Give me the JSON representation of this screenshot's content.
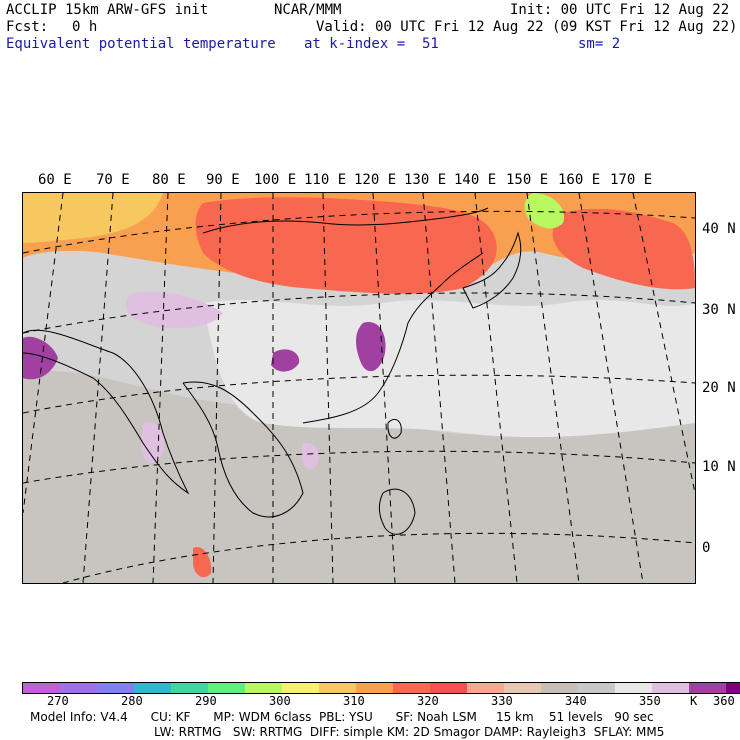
{
  "header": {
    "model": "ACCLIP 15km ARW-GFS init",
    "fcst_label": "Fcst:",
    "fcst_value": "0 h",
    "center": "NCAR/MMM",
    "init": "Init: 00 UTC Fri 12 Aug 22",
    "valid": "Valid: 00 UTC Fri 12 Aug 22 (09 KST Fri 12 Aug 22)",
    "field": "Equivalent potential temperature",
    "level": "at k-index =  51",
    "smooth": "sm= 2"
  },
  "map": {
    "lon_labels": [
      "60 E",
      "70 E",
      "80 E",
      "90 E",
      "100 E",
      "110 E",
      "120 E",
      "130 E",
      "140 E",
      "150 E",
      "160 E",
      "170 E"
    ],
    "lat_labels": [
      "40 N",
      "30 N",
      "20 N",
      "10 N",
      "0"
    ]
  },
  "colorbar": {
    "colors": [
      "#c060d8",
      "#a070e8",
      "#8080f0",
      "#30b8d0",
      "#40d8a0",
      "#60f080",
      "#b8f860",
      "#f8f070",
      "#f8c860",
      "#f8a050",
      "#f86850",
      "#f85050",
      "#f8a890",
      "#e8c8b0",
      "#c8c0b8",
      "#c8c8c8",
      "#e8e8e8",
      "#e0c0e0",
      "#a040a0",
      "#800080"
    ],
    "tick_labels": [
      "270",
      "280",
      "290",
      "300",
      "310",
      "320",
      "330",
      "340",
      "350",
      "360"
    ],
    "units": "K"
  },
  "footer": {
    "line1": "Model Info: V4.4      CU: KF      MP: WDM 6class  PBL: YSU      SF: Noah LSM     15 km    51 levels   90 sec",
    "line2": "LW: RRTMG   SW: RRTMG  DIFF: simple KM: 2D Smagor DAMP: Rayleigh3  SFLAY: MM5"
  }
}
